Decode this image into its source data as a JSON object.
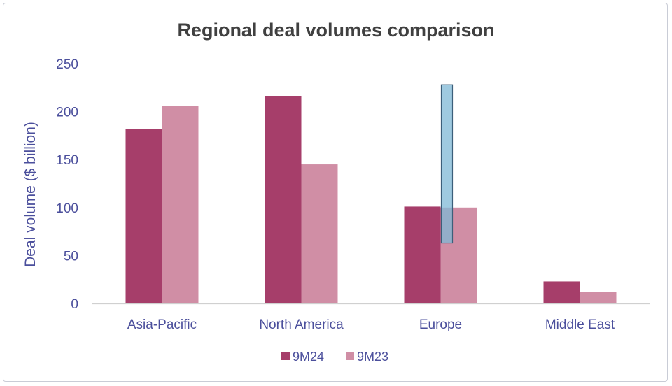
{
  "chart_data": {
    "type": "bar",
    "title": "Regional deal volumes comparison",
    "xlabel": "",
    "ylabel": "Deal volume ($ billion)",
    "ylim": [
      0,
      250
    ],
    "yticks": [
      0,
      50,
      100,
      150,
      200,
      250
    ],
    "categories": [
      "Asia-Pacific",
      "North America",
      "Europe",
      "Middle East"
    ],
    "series": [
      {
        "name": "9M24",
        "color": "#a63e6a",
        "values": [
          182,
          216,
          101,
          23
        ]
      },
      {
        "name": "9M23",
        "color": "#d08ea5",
        "values": [
          206,
          145,
          100,
          12
        ]
      }
    ],
    "overlay": {
      "category": "Europe",
      "low": 63,
      "high": 228,
      "fill": "#7fb8d6",
      "stroke": "#3c5f7a"
    },
    "legend_position": "bottom",
    "grid": false
  }
}
